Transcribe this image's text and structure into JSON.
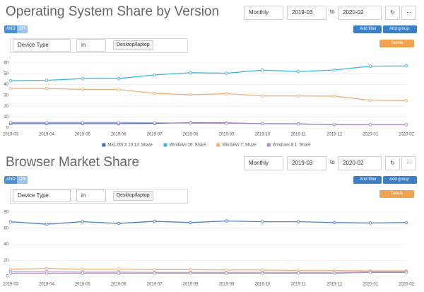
{
  "panels": [
    {
      "title": "Operating System Share by Version",
      "interval": "Monthly",
      "from": "2019-03",
      "to_label": "to",
      "to": "2020-02",
      "and": "AND",
      "or": "OR",
      "add_filter": "Add filter",
      "add_group": "Add group",
      "filter": {
        "field": "Device Type",
        "op": "in",
        "value": "Desktop/laptop"
      },
      "delete": "Delete"
    },
    {
      "title": "Browser Market Share",
      "interval": "Monthly",
      "from": "2019-03",
      "to_label": "to",
      "to": "2020-02",
      "and": "AND",
      "or": "OR",
      "add_filter": "Add filter",
      "add_group": "Add group",
      "filter": {
        "field": "Device Type",
        "op": "in",
        "value": "Desktop/laptop"
      },
      "delete": "Delete"
    }
  ],
  "chart_data": [
    {
      "type": "line",
      "categories": [
        "2019-03",
        "2019-04",
        "2019-05",
        "2019-06",
        "2019-07",
        "2019-08",
        "2019-09",
        "2019-10",
        "2019-11",
        "2019-12",
        "2020-01",
        "2020-02"
      ],
      "series": [
        {
          "name": "Mac OS X 10.14: Share",
          "color": "#4a6fb5",
          "values": [
            4,
            4,
            4,
            4,
            4.2,
            4.8,
            4.6,
            4,
            3.8,
            3,
            3,
            3
          ]
        },
        {
          "name": "Windows 10: Share",
          "color": "#3fb6dd",
          "values": [
            43.6,
            44,
            45.5,
            45.6,
            48.9,
            51,
            50.5,
            53.4,
            52,
            53.5,
            57,
            57.3
          ]
        },
        {
          "name": "Windows 7: Share",
          "color": "#f0b27a",
          "values": [
            36.5,
            36.4,
            35.6,
            35.5,
            32,
            30.7,
            31.7,
            29.5,
            29.5,
            29.3,
            25.6,
            25.2
          ]
        },
        {
          "name": "Windows 8.1: Share",
          "color": "#b08fd0",
          "values": [
            5,
            5,
            5,
            5,
            4.8,
            4.4,
            4.2,
            4,
            3.6,
            3.2,
            3,
            3
          ]
        }
      ],
      "ylim": [
        0,
        60
      ],
      "yticks": [
        0,
        10,
        20,
        30,
        40,
        50,
        60
      ],
      "grid": true,
      "legend": "bottom"
    },
    {
      "type": "line",
      "categories": [
        "2019-03",
        "2019-04",
        "2019-05",
        "2019-06",
        "2019-07",
        "2019-08",
        "2019-09",
        "2019-10",
        "2019-11",
        "2019-12",
        "2020-01",
        "2020-02"
      ],
      "series": [
        {
          "color": "#4d7fc4",
          "values": [
            68,
            65,
            68,
            66,
            68.5,
            67,
            69,
            68,
            68,
            67,
            66.5,
            67
          ]
        },
        {
          "color": "#f0b27a",
          "values": [
            9,
            10,
            9,
            9,
            8.5,
            8.5,
            8,
            8,
            7.5,
            7.5,
            7,
            7
          ]
        },
        {
          "color": "#c9a3d9",
          "values": [
            6,
            6,
            5.5,
            5.5,
            5,
            5,
            5,
            5,
            5,
            5,
            6,
            6
          ]
        },
        {
          "color": "#a0a0a0",
          "values": [
            4,
            4,
            4,
            4,
            4,
            4,
            4,
            4,
            4,
            4,
            5,
            5
          ]
        }
      ],
      "ylim": [
        0,
        80
      ],
      "yticks": [
        0,
        20,
        40,
        60,
        80
      ],
      "grid": true
    }
  ]
}
